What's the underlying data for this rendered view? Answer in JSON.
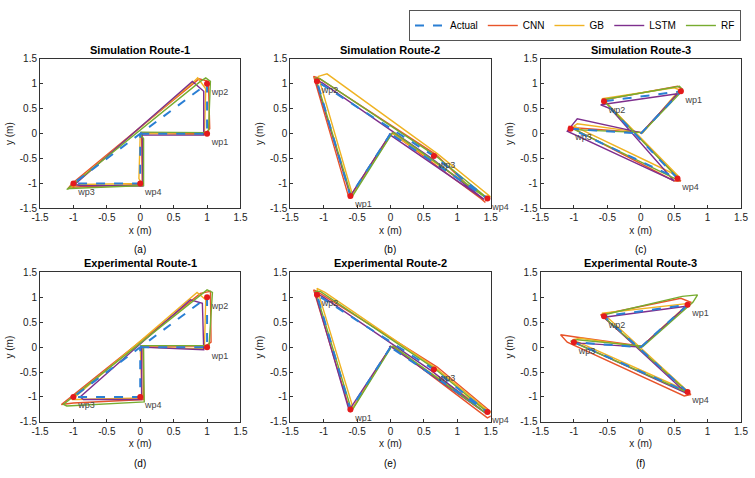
{
  "chart_data": [
    {
      "type": "line",
      "title": "Simulation Route-1",
      "label": "(a)",
      "xlabel": "x (m)",
      "ylabel": "y (m)",
      "xlim": [
        -1.5,
        1.5
      ],
      "ylim": [
        -1.5,
        1.5
      ],
      "xticks": [
        -1.5,
        -1,
        -0.5,
        0,
        0.5,
        1,
        1.5
      ],
      "yticks": [
        -1.5,
        -1,
        -0.5,
        0,
        0.5,
        1,
        1.5
      ],
      "grid": false,
      "legend": "top",
      "series": [
        {
          "name": "Actual",
          "color": "#2a7fd4",
          "line_style": "dashed",
          "x": [
            0,
            1,
            1,
            -1,
            0,
            0
          ],
          "y": [
            0,
            0,
            1,
            -1,
            -1,
            0
          ]
        },
        {
          "name": "CNN",
          "color": "#e8542a",
          "line_style": "solid",
          "x": [
            0,
            0.97,
            1.04,
            1.02,
            0.88,
            -1.02,
            -1.08,
            -0.98,
            0.03,
            0.02
          ],
          "y": [
            0.02,
            0.0,
            0.1,
            1.05,
            1.1,
            -1.0,
            -1.1,
            -1.07,
            -1.02,
            0.0
          ]
        },
        {
          "name": "GB",
          "color": "#f0b323",
          "line_style": "solid",
          "x": [
            0,
            0.96,
            0.98,
            0.86,
            0.8,
            -1.05,
            -0.92,
            0.02,
            -0.02,
            0
          ],
          "y": [
            0,
            -0.02,
            0.9,
            1.12,
            1.04,
            -1.08,
            -1.02,
            -1.0,
            -0.9,
            0
          ]
        },
        {
          "name": "LSTM",
          "color": "#7e2f8e",
          "line_style": "solid",
          "x": [
            0,
            0.95,
            0.95,
            0.78,
            -0.98,
            -0.9,
            0.04,
            0.03
          ],
          "y": [
            -0.03,
            -0.03,
            0.85,
            1.05,
            -1.02,
            -1.04,
            -1.05,
            0
          ]
        },
        {
          "name": "RF",
          "color": "#77ac30",
          "line_style": "solid",
          "x": [
            0,
            1.02,
            1.05,
            0.98,
            0.9,
            -1.1,
            -1.05,
            0.05,
            0.05,
            0
          ],
          "y": [
            0.03,
            0.02,
            1.05,
            1.12,
            1.05,
            -1.12,
            -1.1,
            -1.04,
            -0.1,
            0
          ]
        }
      ],
      "waypoints": {
        "color": "#e41a1c",
        "marker": "circle",
        "labels": [
          "wp1",
          "wp2",
          "wp3",
          "wp4"
        ],
        "x": [
          1,
          1,
          -1,
          0
        ],
        "y": [
          0,
          1,
          -1,
          -1
        ]
      }
    },
    {
      "type": "line",
      "title": "Simulation Route-2",
      "label": "(b)",
      "xlabel": "x (m)",
      "ylabel": "y (m)",
      "xlim": [
        -1.5,
        1.5
      ],
      "ylim": [
        -1.5,
        1.5
      ],
      "xticks": [
        -1.5,
        -1,
        -0.5,
        0,
        0.5,
        1,
        1.5
      ],
      "yticks": [
        -1.5,
        -1,
        -0.5,
        0,
        0.5,
        1,
        1.5
      ],
      "grid": false,
      "series": [
        {
          "name": "Actual",
          "color": "#2a7fd4",
          "line_style": "dashed",
          "x": [
            0,
            -0.6,
            -1.1,
            0.65,
            1.45,
            0
          ],
          "y": [
            0,
            -1.25,
            1.05,
            -0.45,
            -1.3,
            0
          ]
        },
        {
          "name": "CNN",
          "color": "#e8542a",
          "line_style": "solid",
          "x": [
            0,
            -0.62,
            -1.15,
            -1.08,
            0.68,
            1.42,
            1.35,
            0.02
          ],
          "y": [
            0,
            -1.3,
            1.15,
            1.12,
            -0.42,
            -1.38,
            -1.3,
            0.02
          ]
        },
        {
          "name": "GB",
          "color": "#f0b323",
          "line_style": "solid",
          "x": [
            0.02,
            -0.57,
            -1.08,
            -0.95,
            0.7,
            1.5,
            1.4,
            0.03
          ],
          "y": [
            0,
            -1.22,
            1.15,
            1.2,
            -0.4,
            -1.27,
            -1.25,
            0
          ]
        },
        {
          "name": "LSTM",
          "color": "#7e2f8e",
          "line_style": "solid",
          "x": [
            0,
            -0.6,
            -1.12,
            -1.02,
            0.62,
            1.4,
            0,
            -0.02
          ],
          "y": [
            0,
            -1.25,
            1.08,
            1.02,
            -0.5,
            -1.32,
            -0.03,
            0
          ]
        },
        {
          "name": "RF",
          "color": "#77ac30",
          "line_style": "solid",
          "x": [
            0.03,
            -0.58,
            -1.12,
            -1.05,
            0.67,
            1.48,
            1.42,
            0.04
          ],
          "y": [
            0.02,
            -1.28,
            1.12,
            1.1,
            -0.44,
            -1.33,
            -1.28,
            0.03
          ]
        }
      ],
      "waypoints": {
        "color": "#e41a1c",
        "marker": "circle",
        "labels": [
          "wp1",
          "wp2",
          "wp3",
          "wp4"
        ],
        "x": [
          -0.6,
          -1.1,
          0.65,
          1.45
        ],
        "y": [
          -1.25,
          1.05,
          -0.45,
          -1.3
        ]
      }
    },
    {
      "type": "line",
      "title": "Simulation Route-3",
      "label": "(c)",
      "xlabel": "x (m)",
      "ylabel": "y (m)",
      "xlim": [
        -1.5,
        1.5
      ],
      "ylim": [
        -1.5,
        1.5
      ],
      "xticks": [
        -1.5,
        -1,
        -0.5,
        0,
        0.5,
        1,
        1.5
      ],
      "yticks": [
        -1.5,
        -1,
        -0.5,
        0,
        0.5,
        1,
        1.5
      ],
      "grid": false,
      "series": [
        {
          "name": "Actual",
          "color": "#2a7fd4",
          "line_style": "dashed",
          "x": [
            0,
            0.6,
            -0.55,
            0.55,
            -1.05,
            0
          ],
          "y": [
            0,
            0.85,
            0.65,
            -0.9,
            0.1,
            0
          ]
        },
        {
          "name": "CNN",
          "color": "#e8542a",
          "line_style": "solid",
          "x": [
            0,
            0.62,
            0.55,
            -0.55,
            -0.5,
            0.6,
            0.5,
            -1.08,
            -1.0,
            0.02
          ],
          "y": [
            0,
            0.9,
            0.95,
            0.68,
            0.6,
            -0.95,
            -0.95,
            0.15,
            0.12,
            0.02
          ]
        },
        {
          "name": "GB",
          "color": "#f0b323",
          "line_style": "solid",
          "x": [
            0.02,
            0.58,
            0.5,
            -0.58,
            -0.5,
            0.56,
            -1.0,
            -0.95,
            0.03
          ],
          "y": [
            0,
            0.88,
            0.92,
            0.7,
            0.6,
            -0.85,
            0.15,
            0.2,
            0.02
          ]
        },
        {
          "name": "LSTM",
          "color": "#7e2f8e",
          "line_style": "solid",
          "x": [
            0,
            0.55,
            -0.6,
            -0.45,
            0.5,
            -1.1,
            -0.95,
            0
          ],
          "y": [
            0,
            0.8,
            0.58,
            0.5,
            -0.95,
            0.05,
            0.3,
            0.02
          ]
        },
        {
          "name": "RF",
          "color": "#77ac30",
          "line_style": "solid",
          "x": [
            0.02,
            0.63,
            0.58,
            -0.57,
            0.55,
            0.58,
            -1.05,
            -1.0,
            0.02
          ],
          "y": [
            0.02,
            0.87,
            0.95,
            0.68,
            -0.88,
            -0.95,
            0.12,
            0.08,
            0.02
          ]
        }
      ],
      "waypoints": {
        "color": "#e41a1c",
        "marker": "circle",
        "labels": [
          "wp1",
          "wp2",
          "wp3",
          "wp4"
        ],
        "x": [
          0.6,
          -0.55,
          -1.05,
          0.55
        ],
        "y": [
          0.85,
          0.65,
          0.1,
          -0.9
        ]
      }
    },
    {
      "type": "line",
      "title": "Experimental Route-1",
      "label": "(d)",
      "xlabel": "x (m)",
      "ylabel": "y (m)",
      "xlim": [
        -1.5,
        1.5
      ],
      "ylim": [
        -1.5,
        1.5
      ],
      "xticks": [
        -1.5,
        -1,
        -0.5,
        0,
        0.5,
        1,
        1.5
      ],
      "yticks": [
        -1.5,
        -1,
        -0.5,
        0,
        0.5,
        1,
        1.5
      ],
      "grid": false,
      "series": [
        {
          "name": "Actual",
          "color": "#2a7fd4",
          "line_style": "dashed",
          "x": [
            0,
            1,
            1,
            -1,
            0,
            0
          ],
          "y": [
            0,
            0,
            1,
            -1,
            -1,
            0
          ]
        },
        {
          "name": "CNN",
          "color": "#e8542a",
          "line_style": "solid",
          "x": [
            0,
            0.98,
            1.06,
            1.05,
            0.9,
            -1.1,
            -1.18,
            -1.0,
            0.05,
            0.04
          ],
          "y": [
            0.02,
            0.02,
            0.1,
            1.12,
            1.08,
            -1.05,
            -1.15,
            -1.12,
            -1.05,
            0.02
          ]
        },
        {
          "name": "GB",
          "color": "#f0b323",
          "line_style": "solid",
          "x": [
            0,
            0.96,
            0.98,
            0.85,
            -1.02,
            -0.95,
            0.03,
            0.0
          ],
          "y": [
            0,
            -0.03,
            0.95,
            1.1,
            -1.05,
            -1.05,
            -1.02,
            0
          ]
        },
        {
          "name": "LSTM",
          "color": "#7e2f8e",
          "line_style": "solid",
          "x": [
            0,
            0.95,
            0.93,
            0.75,
            -0.9,
            -0.85,
            0.02,
            0.02
          ],
          "y": [
            0,
            -0.05,
            0.88,
            0.95,
            -1.0,
            -1.05,
            -1.05,
            0
          ]
        },
        {
          "name": "RF",
          "color": "#77ac30",
          "line_style": "solid",
          "x": [
            0,
            1.03,
            1.08,
            1.0,
            -1.15,
            -1.1,
            0.06,
            0.05
          ],
          "y": [
            0.03,
            0.03,
            1.1,
            1.15,
            -1.15,
            -1.18,
            -1.1,
            0
          ]
        }
      ],
      "waypoints": {
        "color": "#e41a1c",
        "marker": "circle",
        "labels": [
          "wp1",
          "wp2",
          "wp3",
          "wp4"
        ],
        "x": [
          1,
          1,
          -1,
          0
        ],
        "y": [
          0,
          1,
          -1,
          -1
        ]
      }
    },
    {
      "type": "line",
      "title": "Experimental Route-2",
      "label": "(e)",
      "xlabel": "x (m)",
      "ylabel": "y (m)",
      "xlim": [
        -1.5,
        1.5
      ],
      "ylim": [
        -1.5,
        1.5
      ],
      "xticks": [
        -1.5,
        -1,
        -0.5,
        0,
        0.5,
        1,
        1.5
      ],
      "yticks": [
        -1.5,
        -1,
        -0.5,
        0,
        0.5,
        1,
        1.5
      ],
      "grid": false,
      "series": [
        {
          "name": "Actual",
          "color": "#2a7fd4",
          "line_style": "dashed",
          "x": [
            0,
            -0.6,
            -1.1,
            0.65,
            1.45,
            0
          ],
          "y": [
            0,
            -1.25,
            1.05,
            -0.45,
            -1.3,
            0
          ]
        },
        {
          "name": "CNN",
          "color": "#e8542a",
          "line_style": "solid",
          "x": [
            0,
            -0.6,
            -1.15,
            -1.1,
            0.7,
            1.55,
            1.45,
            0.03
          ],
          "y": [
            0,
            -1.3,
            1.15,
            1.12,
            -0.4,
            -1.35,
            -1.42,
            0.02
          ]
        },
        {
          "name": "GB",
          "color": "#f0b323",
          "line_style": "solid",
          "x": [
            0,
            -0.56,
            -1.1,
            -0.98,
            0.68,
            1.5,
            0.02
          ],
          "y": [
            0,
            -1.22,
            1.18,
            1.1,
            -0.42,
            -1.32,
            0
          ]
        },
        {
          "name": "LSTM",
          "color": "#7e2f8e",
          "line_style": "solid",
          "x": [
            0,
            -0.62,
            -1.13,
            -1.0,
            0.62,
            1.42,
            0,
            -0.02
          ],
          "y": [
            0,
            -1.27,
            1.1,
            1.0,
            -0.48,
            -1.32,
            0.02,
            0
          ]
        },
        {
          "name": "RF",
          "color": "#77ac30",
          "line_style": "solid",
          "x": [
            0.02,
            -0.58,
            -1.12,
            -1.05,
            0.66,
            1.48,
            1.4,
            0.03
          ],
          "y": [
            0.02,
            -1.28,
            1.12,
            1.12,
            -0.43,
            -1.34,
            -1.3,
            0.03
          ]
        }
      ],
      "waypoints": {
        "color": "#e41a1c",
        "marker": "circle",
        "labels": [
          "wp1",
          "wp2",
          "wp3",
          "wp4"
        ],
        "x": [
          -0.6,
          -1.1,
          0.65,
          1.45
        ],
        "y": [
          -1.25,
          1.05,
          -0.45,
          -1.3
        ]
      }
    },
    {
      "type": "line",
      "title": "Experimental Route-3",
      "label": "(f)",
      "xlabel": "x (m)",
      "ylabel": "y (m)",
      "xlim": [
        -1.5,
        1.5
      ],
      "ylim": [
        -1.5,
        1.5
      ],
      "xticks": [
        -1.5,
        -1,
        -0.5,
        0,
        0.5,
        1,
        1.5
      ],
      "yticks": [
        -1.5,
        -1,
        -0.5,
        0,
        0.5,
        1,
        1.5
      ],
      "grid": false,
      "series": [
        {
          "name": "Actual",
          "color": "#2a7fd4",
          "line_style": "dashed",
          "x": [
            0,
            0.7,
            -0.55,
            0.7,
            -1.0,
            0
          ],
          "y": [
            0,
            0.85,
            0.62,
            -0.9,
            0.1,
            0
          ]
        },
        {
          "name": "CNN",
          "color": "#e8542a",
          "line_style": "solid",
          "x": [
            0,
            0.75,
            0.6,
            -0.6,
            0.75,
            0.65,
            -1.1,
            -1.2,
            -0.95,
            0.02
          ],
          "y": [
            0,
            0.9,
            0.98,
            0.65,
            -0.95,
            -0.98,
            0.1,
            0.25,
            0.2,
            0.02
          ]
        },
        {
          "name": "GB",
          "color": "#f0b323",
          "line_style": "solid",
          "x": [
            0,
            0.72,
            -0.58,
            -0.5,
            0.7,
            -1.02,
            -0.9,
            0.02
          ],
          "y": [
            0,
            0.88,
            0.68,
            0.6,
            -0.88,
            0.15,
            0.18,
            0
          ]
        },
        {
          "name": "LSTM",
          "color": "#7e2f8e",
          "line_style": "solid",
          "x": [
            0,
            0.68,
            -0.55,
            0.68,
            -1.0,
            -0.9,
            0
          ],
          "y": [
            0,
            0.82,
            0.6,
            -0.92,
            0.1,
            0.08,
            0.0
          ]
        },
        {
          "name": "RF",
          "color": "#77ac30",
          "line_style": "solid",
          "x": [
            0.02,
            0.78,
            0.85,
            0.62,
            -0.58,
            0.72,
            -1.05,
            -0.95,
            0.02
          ],
          "y": [
            0,
            0.9,
            1.05,
            1.02,
            0.64,
            -0.92,
            0.12,
            0.15,
            0.02
          ]
        }
      ],
      "waypoints": {
        "color": "#e41a1c",
        "marker": "circle",
        "labels": [
          "wp1",
          "wp2",
          "wp3",
          "wp4"
        ],
        "x": [
          0.7,
          -0.55,
          -1.0,
          0.7
        ],
        "y": [
          0.85,
          0.62,
          0.1,
          -0.9
        ]
      }
    }
  ]
}
